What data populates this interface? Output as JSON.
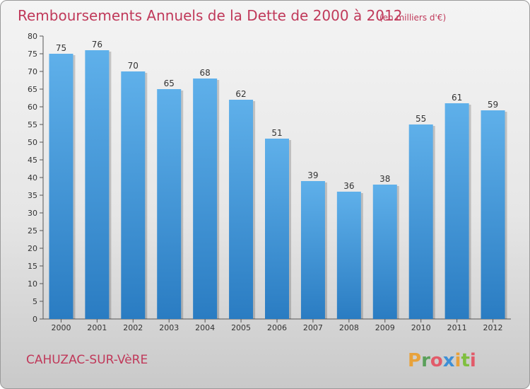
{
  "chart_data": {
    "type": "bar",
    "title": "Remboursements Annuels de la Dette de 2000 à 2012",
    "subtitle": "(en milliers d'€)",
    "categories": [
      "2000",
      "2001",
      "2002",
      "2003",
      "2004",
      "2005",
      "2006",
      "2007",
      "2008",
      "2009",
      "2010",
      "2011",
      "2012"
    ],
    "values": [
      75,
      76,
      70,
      65,
      68,
      62,
      51,
      39,
      36,
      38,
      55,
      61,
      59
    ],
    "ylim": [
      0,
      80
    ],
    "yticks": [
      0,
      5,
      10,
      15,
      20,
      25,
      30,
      35,
      40,
      45,
      50,
      55,
      60,
      65,
      70,
      75,
      80
    ],
    "grid": false,
    "bar_color": "#3d8fd6",
    "title_color": "#c0395a"
  },
  "commune": "CAHUZAC-SUR-VèRE",
  "logo": {
    "letters": [
      "P",
      "r",
      "o",
      "x",
      "i",
      "t",
      "i"
    ],
    "colors": [
      "#e8a23a",
      "#5aa05a",
      "#e25b6a",
      "#3d8fd6",
      "#e8a23a",
      "#7fbf3f",
      "#e25b6a"
    ]
  }
}
